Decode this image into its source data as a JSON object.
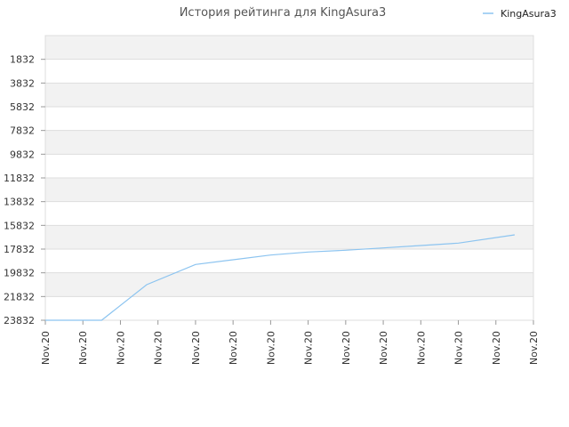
{
  "chart_data": {
    "type": "line",
    "title": "История рейтинга для KingAsura3",
    "xlabel": "",
    "ylabel": "",
    "y_inverted": true,
    "ylim": [
      1832,
      23832
    ],
    "yticks": [
      1832,
      3832,
      5832,
      7832,
      9832,
      11832,
      13832,
      15832,
      17832,
      19832,
      21832,
      23832
    ],
    "xticks": [
      "Nov.20",
      "Nov.20",
      "Nov.20",
      "Nov.20",
      "Nov.20",
      "Nov.20",
      "Nov.20",
      "Nov.20",
      "Nov.20",
      "Nov.20",
      "Nov.20",
      "Nov.20",
      "Nov.20",
      "Nov.20"
    ],
    "grid": true,
    "legend_position": "top-right",
    "series": [
      {
        "name": "KingAsura3",
        "color": "#8cc4f0",
        "x": [
          0,
          1.5,
          2.7,
          4,
          5,
          6,
          7,
          8,
          9,
          10,
          11,
          12.5
        ],
        "y": [
          23832,
          23832,
          20832,
          19132,
          18732,
          18332,
          18082,
          17932,
          17732,
          17532,
          17332,
          16632
        ]
      }
    ]
  },
  "colors": {
    "band_dark": "#f2f2f2",
    "band_light": "#ffffff",
    "grid": "#dddddd"
  }
}
